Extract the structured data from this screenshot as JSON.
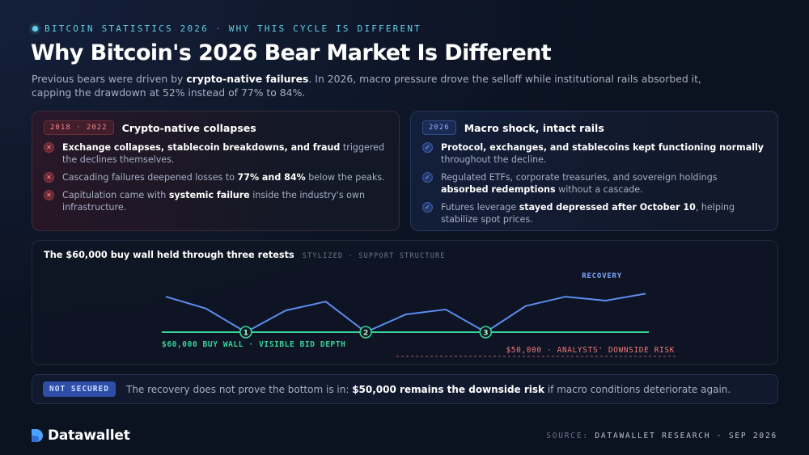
{
  "eyebrow": {
    "left": "BITCOIN STATISTICS 2026",
    "separator": "·",
    "right": "WHY THIS CYCLE IS DIFFERENT"
  },
  "title": "Why Bitcoin's 2026 Bear Market Is Different",
  "subtitle": {
    "part1": "Previous bears were driven by ",
    "bold1": "crypto-native failures",
    "part2": ". In 2026, macro pressure drove the selloff while institutional rails absorbed it, capping the drawdown at 52% instead of 77% to 84%."
  },
  "left_card": {
    "tag": "2018 · 2022",
    "title": "Crypto-native collapses",
    "items": [
      {
        "b1": "Exchange collapses, stablecoin breakdowns, and fraud",
        "t1": " triggered the declines themselves.",
        "b2": "",
        "t2": ""
      },
      {
        "b1": "",
        "t1": "Cascading failures deepened losses to ",
        "b2": "77% and 84%",
        "t2": " below the peaks."
      },
      {
        "b1": "",
        "t1": "Capitulation came with ",
        "b2": "systemic failure",
        "t2": " inside the industry's own infrastructure."
      }
    ]
  },
  "right_card": {
    "tag": "2026",
    "title": "Macro shock, intact rails",
    "items": [
      {
        "b1": "Protocol, exchanges, and stablecoins kept functioning normally",
        "t1": " throughout the decline.",
        "b2": "",
        "t2": ""
      },
      {
        "b1": "",
        "t1": "Regulated ETFs, corporate treasuries, and sovereign holdings ",
        "b2": "absorbed redemptions",
        "t2": " without a cascade."
      },
      {
        "b1": "",
        "t1": "Futures leverage ",
        "b2": "stayed depressed after October 10",
        "t2": ", helping stabilize spot prices."
      }
    ]
  },
  "chart": {
    "title": "The $60,000 buy wall held through three retests",
    "kicker": "STYLIZED · SUPPORT STRUCTURE",
    "support_label": "$60,000 BUY WALL · VISIBLE BID DEPTH",
    "risk_label": "$50,000 · ANALYSTS' DOWNSIDE RISK",
    "recovery_label": "RECOVERY",
    "retest_labels": [
      "1",
      "2",
      "3"
    ],
    "colors": {
      "price": "#5b8def",
      "support": "#37d39a",
      "risk": "#f07878",
      "recovery": "#7fa6ff"
    }
  },
  "chart_data": {
    "type": "line",
    "title": "The $60,000 buy wall held through three retests",
    "series": [
      {
        "values": [
          0.72,
          0.48,
          0.0,
          0.44,
          0.62,
          0.0,
          0.36,
          0.46,
          0.0,
          0.53,
          0.72,
          0.64,
          0.78
        ]
      }
    ],
    "support_level": 60000,
    "downside_risk_level": 50000,
    "retest_points": [
      2,
      5,
      8
    ]
  },
  "notice": {
    "badge": "NOT SECURED",
    "t1": "The recovery does not prove the bottom is in: ",
    "b1": "$50,000 remains the downside risk",
    "t2": " if macro conditions deteriorate again."
  },
  "footer": {
    "brand": "Datawallet",
    "source_label": "SOURCE:",
    "source_value": "DATAWALLET RESEARCH · SEP 2026"
  }
}
